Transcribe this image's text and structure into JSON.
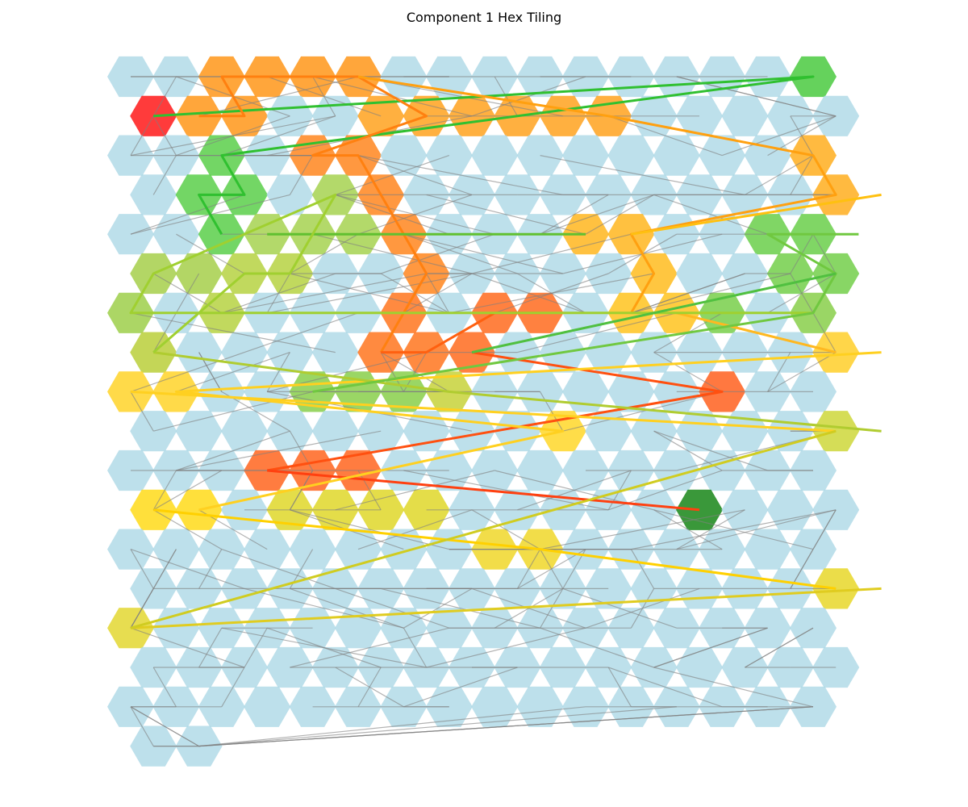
{
  "title": "Component 1 Hex Tiling",
  "colors": {
    "tile_default": "#add8e6",
    "edge_default": "#808080"
  },
  "grid": {
    "rows": [
      16,
      16,
      16,
      16,
      16,
      16,
      16,
      16,
      16,
      16,
      16,
      16,
      16,
      16,
      16,
      16,
      16,
      2
    ],
    "row_offset": [
      0,
      1,
      0,
      1,
      0,
      1,
      0,
      1,
      0,
      1,
      0,
      1,
      0,
      1,
      0,
      1,
      0,
      1
    ]
  },
  "highlighted_tiles": [
    {
      "r": 1,
      "c": 0,
      "color": "#ff2020"
    },
    {
      "r": 0,
      "c": 2,
      "color": "#ff9a20"
    },
    {
      "r": 0,
      "c": 3,
      "color": "#ff9a20"
    },
    {
      "r": 0,
      "c": 4,
      "color": "#ff9a20"
    },
    {
      "r": 0,
      "c": 5,
      "color": "#ff9a20"
    },
    {
      "r": 1,
      "c": 1,
      "color": "#ff9a20"
    },
    {
      "r": 1,
      "c": 2,
      "color": "#ff9a20"
    },
    {
      "r": 1,
      "c": 5,
      "color": "#ffa525"
    },
    {
      "r": 1,
      "c": 6,
      "color": "#ffa525"
    },
    {
      "r": 1,
      "c": 7,
      "color": "#ffa525"
    },
    {
      "r": 1,
      "c": 8,
      "color": "#ffa525"
    },
    {
      "r": 1,
      "c": 9,
      "color": "#ffa525"
    },
    {
      "r": 1,
      "c": 10,
      "color": "#ffa525"
    },
    {
      "r": 2,
      "c": 4,
      "color": "#ff8a25"
    },
    {
      "r": 2,
      "c": 5,
      "color": "#ff8a25"
    },
    {
      "r": 3,
      "c": 5,
      "color": "#ff8a25"
    },
    {
      "r": 4,
      "c": 6,
      "color": "#ff8a25"
    },
    {
      "r": 5,
      "c": 6,
      "color": "#ff8a25"
    },
    {
      "r": 6,
      "c": 6,
      "color": "#ff7a25"
    },
    {
      "r": 6,
      "c": 8,
      "color": "#ff7025"
    },
    {
      "r": 6,
      "c": 9,
      "color": "#ff7025"
    },
    {
      "r": 7,
      "c": 5,
      "color": "#ff7a25"
    },
    {
      "r": 7,
      "c": 6,
      "color": "#ff7a25"
    },
    {
      "r": 7,
      "c": 7,
      "color": "#ff7025"
    },
    {
      "r": 8,
      "c": 13,
      "color": "#ff6525"
    },
    {
      "r": 10,
      "c": 3,
      "color": "#ff6a25"
    },
    {
      "r": 10,
      "c": 4,
      "color": "#ff6a25"
    },
    {
      "r": 10,
      "c": 5,
      "color": "#ff6a25"
    },
    {
      "r": 2,
      "c": 15,
      "color": "#ffb025"
    },
    {
      "r": 3,
      "c": 15,
      "color": "#ffb025"
    },
    {
      "r": 3,
      "c": 16,
      "color": "#ffb025"
    },
    {
      "r": 4,
      "c": 10,
      "color": "#ffb825"
    },
    {
      "r": 4,
      "c": 11,
      "color": "#ffb825"
    },
    {
      "r": 5,
      "c": 11,
      "color": "#ffbe25"
    },
    {
      "r": 6,
      "c": 11,
      "color": "#ffc525"
    },
    {
      "r": 6,
      "c": 12,
      "color": "#ffc525"
    },
    {
      "r": 7,
      "c": 15,
      "color": "#ffd030"
    },
    {
      "r": 7,
      "c": 16,
      "color": "#ffd030"
    },
    {
      "r": 8,
      "c": 0,
      "color": "#ffd530"
    },
    {
      "r": 8,
      "c": 1,
      "color": "#ffd530"
    },
    {
      "r": 9,
      "c": 9,
      "color": "#ffd830"
    },
    {
      "r": 11,
      "c": 0,
      "color": "#ffdc20"
    },
    {
      "r": 11,
      "c": 1,
      "color": "#ffdc20"
    },
    {
      "r": 11,
      "c": 3,
      "color": "#e0d830"
    },
    {
      "r": 11,
      "c": 4,
      "color": "#e0d830"
    },
    {
      "r": 11,
      "c": 5,
      "color": "#e0d830"
    },
    {
      "r": 11,
      "c": 6,
      "color": "#e0d830"
    },
    {
      "r": 12,
      "c": 8,
      "color": "#f0d830"
    },
    {
      "r": 12,
      "c": 9,
      "color": "#f0d830"
    },
    {
      "r": 13,
      "c": 15,
      "color": "#e8d830"
    },
    {
      "r": 13,
      "c": 16,
      "color": "#e8d830"
    },
    {
      "r": 14,
      "c": 0,
      "color": "#e4d838"
    },
    {
      "r": 9,
      "c": 15,
      "color": "#cfd840"
    },
    {
      "r": 9,
      "c": 16,
      "color": "#cfd840"
    },
    {
      "r": 8,
      "c": 7,
      "color": "#c8d440"
    },
    {
      "r": 7,
      "c": 0,
      "color": "#bcd040"
    },
    {
      "r": 5,
      "c": 2,
      "color": "#b8d448"
    },
    {
      "r": 5,
      "c": 3,
      "color": "#b8d448"
    },
    {
      "r": 6,
      "c": 2,
      "color": "#b8d448"
    },
    {
      "r": 5,
      "c": 0,
      "color": "#a8d050"
    },
    {
      "r": 5,
      "c": 1,
      "color": "#a8d050"
    },
    {
      "r": 6,
      "c": 0,
      "color": "#a0d050"
    },
    {
      "r": 4,
      "c": 3,
      "color": "#a8d455"
    },
    {
      "r": 4,
      "c": 4,
      "color": "#a8d455"
    },
    {
      "r": 4,
      "c": 5,
      "color": "#a8d455"
    },
    {
      "r": 3,
      "c": 4,
      "color": "#a8d455"
    },
    {
      "r": 8,
      "c": 4,
      "color": "#8cd050"
    },
    {
      "r": 8,
      "c": 5,
      "color": "#8cd050"
    },
    {
      "r": 8,
      "c": 6,
      "color": "#8cd050"
    },
    {
      "r": 6,
      "c": 15,
      "color": "#8cd050"
    },
    {
      "r": 6,
      "c": 13,
      "color": "#7cd050"
    },
    {
      "r": 5,
      "c": 14,
      "color": "#78d050"
    },
    {
      "r": 5,
      "c": 15,
      "color": "#78d050"
    },
    {
      "r": 4,
      "c": 14,
      "color": "#6ed050"
    },
    {
      "r": 4,
      "c": 15,
      "color": "#6ed050"
    },
    {
      "r": 4,
      "c": 16,
      "color": "#6ed050"
    },
    {
      "r": 2,
      "c": 2,
      "color": "#60d050"
    },
    {
      "r": 3,
      "c": 1,
      "color": "#60d050"
    },
    {
      "r": 3,
      "c": 2,
      "color": "#60d050"
    },
    {
      "r": 4,
      "c": 2,
      "color": "#60d050"
    },
    {
      "r": 0,
      "c": 15,
      "color": "#50cc45"
    },
    {
      "r": 11,
      "c": 12,
      "color": "#1f8a1f"
    }
  ],
  "paths": [
    {
      "color": "#30c030",
      "points": [
        [
          1,
          0
        ],
        [
          0,
          15
        ],
        [
          2,
          2
        ],
        [
          3,
          2
        ],
        [
          3,
          1
        ],
        [
          4,
          2
        ]
      ]
    },
    {
      "color": "#ff8010",
      "points": [
        [
          1,
          1
        ],
        [
          1,
          2
        ],
        [
          0,
          2
        ],
        [
          0,
          5
        ],
        [
          1,
          6
        ],
        [
          2,
          4
        ],
        [
          2,
          5
        ],
        [
          3,
          5
        ],
        [
          4,
          6
        ],
        [
          5,
          6
        ],
        [
          6,
          6
        ],
        [
          7,
          5
        ]
      ]
    },
    {
      "color": "#ffa010",
      "points": [
        [
          0,
          5
        ],
        [
          1,
          10
        ],
        [
          2,
          15
        ],
        [
          3,
          15
        ],
        [
          4,
          11
        ],
        [
          5,
          11
        ],
        [
          6,
          11
        ]
      ]
    },
    {
      "color": "#60c030",
      "points": [
        [
          4,
          3
        ],
        [
          4,
          10
        ]
      ]
    },
    {
      "color": "#ff6010",
      "points": [
        [
          7,
          5
        ],
        [
          7,
          6
        ],
        [
          6,
          8
        ],
        [
          6,
          9
        ]
      ]
    },
    {
      "color": "#ff5010",
      "points": [
        [
          7,
          7
        ],
        [
          8,
          13
        ],
        [
          10,
          3
        ]
      ]
    },
    {
      "color": "#ff4010",
      "points": [
        [
          10,
          3
        ],
        [
          11,
          12
        ]
      ]
    },
    {
      "color": "#ffc010",
      "points": [
        [
          4,
          11
        ],
        [
          3,
          16
        ]
      ]
    },
    {
      "color": "#ffb820",
      "points": [
        [
          6,
          12
        ],
        [
          7,
          15
        ]
      ]
    },
    {
      "color": "#ffd020",
      "points": [
        [
          7,
          16
        ],
        [
          8,
          1
        ],
        [
          9,
          9
        ],
        [
          11,
          1
        ]
      ]
    },
    {
      "color": "#ffd020",
      "points": [
        [
          8,
          0
        ],
        [
          9,
          15
        ]
      ]
    },
    {
      "color": "#ffd000",
      "points": [
        [
          11,
          0
        ],
        [
          12,
          9
        ],
        [
          13,
          15
        ]
      ]
    },
    {
      "color": "#e0cc20",
      "points": [
        [
          14,
          0
        ],
        [
          13,
          16
        ]
      ]
    },
    {
      "color": "#d0cc20",
      "points": [
        [
          14,
          0
        ],
        [
          9,
          15
        ]
      ]
    },
    {
      "color": "#b0cc30",
      "points": [
        [
          7,
          0
        ],
        [
          8,
          7
        ],
        [
          9,
          16
        ]
      ]
    },
    {
      "color": "#a0d030",
      "points": [
        [
          7,
          0
        ],
        [
          5,
          2
        ],
        [
          5,
          3
        ],
        [
          4,
          4
        ],
        [
          3,
          4
        ],
        [
          5,
          0
        ],
        [
          6,
          0
        ],
        [
          6,
          15
        ]
      ]
    },
    {
      "color": "#70c840",
      "points": [
        [
          8,
          4
        ],
        [
          6,
          15
        ],
        [
          5,
          15
        ],
        [
          4,
          14
        ],
        [
          4,
          16
        ]
      ]
    },
    {
      "color": "#50c040",
      "points": [
        [
          7,
          7
        ],
        [
          5,
          15
        ]
      ]
    }
  ],
  "background_edge_count": 300
}
